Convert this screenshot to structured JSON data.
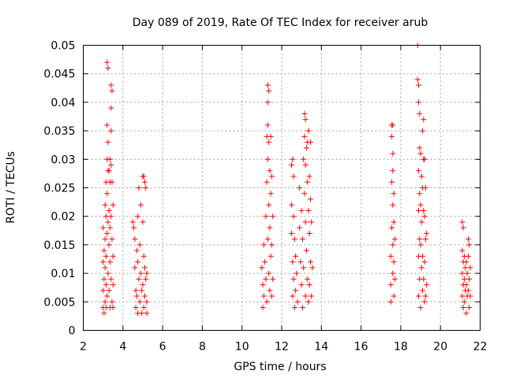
{
  "chart_data": {
    "type": "scatter",
    "title": "Day 089 of 2019, Rate Of TEC Index for receiver arub",
    "xlabel": "GPS time / hours",
    "ylabel": "ROTI / TECUs",
    "xlim": [
      2,
      22
    ],
    "ylim": [
      0,
      0.05
    ],
    "xticks": [
      2,
      4,
      6,
      8,
      10,
      12,
      14,
      16,
      18,
      20,
      22
    ],
    "xtick_labels": [
      "2",
      "4",
      "6",
      "8",
      "10",
      "12",
      "14",
      "16",
      "18",
      "20",
      "22"
    ],
    "yticks": [
      0,
      0.005,
      0.01,
      0.015,
      0.02,
      0.025,
      0.03,
      0.035,
      0.04,
      0.045,
      0.05
    ],
    "ytick_labels": [
      "0",
      "0.005",
      "0.01",
      "0.015",
      "0.02",
      "0.025",
      "0.03",
      "0.035",
      "0.04",
      "0.045",
      "0.05"
    ],
    "grid": true,
    "marker": "+",
    "marker_color": "#ff0000",
    "series": [
      {
        "name": "ROTI",
        "points": [
          [
            3.0,
            0.004
          ],
          [
            3.0,
            0.007
          ],
          [
            3.0,
            0.012
          ],
          [
            3.0,
            0.018
          ],
          [
            3.05,
            0.003
          ],
          [
            3.05,
            0.009
          ],
          [
            3.05,
            0.014
          ],
          [
            3.1,
            0.005
          ],
          [
            3.1,
            0.011
          ],
          [
            3.1,
            0.016
          ],
          [
            3.1,
            0.022
          ],
          [
            3.15,
            0.004
          ],
          [
            3.15,
            0.008
          ],
          [
            3.15,
            0.013
          ],
          [
            3.15,
            0.02
          ],
          [
            3.15,
            0.026
          ],
          [
            3.2,
            0.047
          ],
          [
            3.2,
            0.036
          ],
          [
            3.2,
            0.03
          ],
          [
            3.2,
            0.024
          ],
          [
            3.2,
            0.017
          ],
          [
            3.2,
            0.006
          ],
          [
            3.25,
            0.046
          ],
          [
            3.25,
            0.033
          ],
          [
            3.25,
            0.028
          ],
          [
            3.25,
            0.019
          ],
          [
            3.25,
            0.01
          ],
          [
            3.3,
            0.028
          ],
          [
            3.3,
            0.021
          ],
          [
            3.3,
            0.015
          ],
          [
            3.3,
            0.007
          ],
          [
            3.35,
            0.03
          ],
          [
            3.35,
            0.026
          ],
          [
            3.35,
            0.018
          ],
          [
            3.35,
            0.012
          ],
          [
            3.35,
            0.004
          ],
          [
            3.4,
            0.043
          ],
          [
            3.4,
            0.039
          ],
          [
            3.4,
            0.035
          ],
          [
            3.4,
            0.029
          ],
          [
            3.4,
            0.02
          ],
          [
            3.4,
            0.009
          ],
          [
            3.45,
            0.042
          ],
          [
            3.45,
            0.026
          ],
          [
            3.45,
            0.016
          ],
          [
            3.45,
            0.005
          ],
          [
            3.5,
            0.022
          ],
          [
            3.5,
            0.013
          ],
          [
            3.5,
            0.008
          ],
          [
            3.5,
            0.004
          ],
          [
            4.5,
            0.019
          ],
          [
            4.55,
            0.018
          ],
          [
            4.6,
            0.016
          ],
          [
            4.6,
            0.011
          ],
          [
            4.65,
            0.007
          ],
          [
            4.65,
            0.004
          ],
          [
            4.7,
            0.014
          ],
          [
            4.7,
            0.006
          ],
          [
            4.75,
            0.02
          ],
          [
            4.75,
            0.012
          ],
          [
            4.75,
            0.003
          ],
          [
            4.8,
            0.025
          ],
          [
            4.8,
            0.009
          ],
          [
            4.85,
            0.015
          ],
          [
            4.85,
            0.005
          ],
          [
            4.9,
            0.022
          ],
          [
            4.9,
            0.01
          ],
          [
            4.95,
            0.007
          ],
          [
            4.95,
            0.003
          ],
          [
            5.0,
            0.027
          ],
          [
            5.0,
            0.019
          ],
          [
            5.0,
            0.008
          ],
          [
            5.05,
            0.027
          ],
          [
            5.05,
            0.013
          ],
          [
            5.05,
            0.004
          ],
          [
            5.1,
            0.026
          ],
          [
            5.1,
            0.011
          ],
          [
            5.1,
            0.006
          ],
          [
            5.15,
            0.025
          ],
          [
            5.15,
            0.009
          ],
          [
            5.2,
            0.01
          ],
          [
            5.2,
            0.005
          ],
          [
            5.2,
            0.003
          ],
          [
            11.0,
            0.011
          ],
          [
            11.05,
            0.008
          ],
          [
            11.05,
            0.004
          ],
          [
            11.1,
            0.015
          ],
          [
            11.1,
            0.006
          ],
          [
            11.15,
            0.012
          ],
          [
            11.2,
            0.02
          ],
          [
            11.2,
            0.009
          ],
          [
            11.25,
            0.034
          ],
          [
            11.25,
            0.026
          ],
          [
            11.25,
            0.005
          ],
          [
            11.3,
            0.043
          ],
          [
            11.3,
            0.04
          ],
          [
            11.3,
            0.036
          ],
          [
            11.3,
            0.03
          ],
          [
            11.3,
            0.016
          ],
          [
            11.35,
            0.042
          ],
          [
            11.35,
            0.033
          ],
          [
            11.35,
            0.022
          ],
          [
            11.35,
            0.01
          ],
          [
            11.4,
            0.028
          ],
          [
            11.4,
            0.018
          ],
          [
            11.4,
            0.007
          ],
          [
            11.45,
            0.034
          ],
          [
            11.45,
            0.024
          ],
          [
            11.45,
            0.013
          ],
          [
            11.5,
            0.027
          ],
          [
            11.5,
            0.015
          ],
          [
            11.5,
            0.006
          ],
          [
            11.55,
            0.02
          ],
          [
            11.55,
            0.009
          ],
          [
            12.5,
            0.029
          ],
          [
            12.5,
            0.022
          ],
          [
            12.5,
            0.017
          ],
          [
            12.55,
            0.03
          ],
          [
            12.55,
            0.012
          ],
          [
            12.55,
            0.006
          ],
          [
            12.6,
            0.027
          ],
          [
            12.6,
            0.02
          ],
          [
            12.6,
            0.009
          ],
          [
            12.65,
            0.016
          ],
          [
            12.65,
            0.004
          ],
          [
            12.7,
            0.013
          ],
          [
            12.7,
            0.007
          ],
          [
            12.75,
            0.01
          ],
          [
            12.8,
            0.005
          ],
          [
            12.9,
            0.025
          ],
          [
            12.9,
            0.018
          ],
          [
            12.95,
            0.012
          ],
          [
            13.0,
            0.021
          ],
          [
            13.0,
            0.008
          ],
          [
            13.05,
            0.016
          ],
          [
            13.05,
            0.004
          ],
          [
            13.1,
            0.03
          ],
          [
            13.1,
            0.011
          ],
          [
            13.15,
            0.038
          ],
          [
            13.15,
            0.034
          ],
          [
            13.15,
            0.024
          ],
          [
            13.2,
            0.037
          ],
          [
            13.2,
            0.029
          ],
          [
            13.2,
            0.019
          ],
          [
            13.2,
            0.006
          ],
          [
            13.25,
            0.032
          ],
          [
            13.25,
            0.014
          ],
          [
            13.3,
            0.033
          ],
          [
            13.3,
            0.026
          ],
          [
            13.3,
            0.009
          ],
          [
            13.35,
            0.035
          ],
          [
            13.35,
            0.021
          ],
          [
            13.35,
            0.005
          ],
          [
            13.4,
            0.027
          ],
          [
            13.4,
            0.017
          ],
          [
            13.4,
            0.008
          ],
          [
            13.45,
            0.033
          ],
          [
            13.45,
            0.023
          ],
          [
            13.45,
            0.012
          ],
          [
            13.5,
            0.019
          ],
          [
            13.5,
            0.006
          ],
          [
            13.55,
            0.011
          ],
          [
            17.5,
            0.008
          ],
          [
            17.5,
            0.005
          ],
          [
            17.5,
            0.013
          ],
          [
            17.55,
            0.036
          ],
          [
            17.55,
            0.034
          ],
          [
            17.55,
            0.026
          ],
          [
            17.55,
            0.018
          ],
          [
            17.6,
            0.036
          ],
          [
            17.6,
            0.031
          ],
          [
            17.6,
            0.028
          ],
          [
            17.6,
            0.022
          ],
          [
            17.6,
            0.015
          ],
          [
            17.6,
            0.01
          ],
          [
            17.65,
            0.024
          ],
          [
            17.65,
            0.019
          ],
          [
            17.65,
            0.012
          ],
          [
            17.65,
            0.006
          ],
          [
            17.7,
            0.016
          ],
          [
            17.7,
            0.009
          ],
          [
            18.85,
            0.05
          ],
          [
            18.85,
            0.044
          ],
          [
            18.9,
            0.043
          ],
          [
            18.9,
            0.04
          ],
          [
            18.9,
            0.028
          ],
          [
            18.9,
            0.021
          ],
          [
            18.9,
            0.013
          ],
          [
            18.9,
            0.006
          ],
          [
            18.95,
            0.038
          ],
          [
            18.95,
            0.032
          ],
          [
            18.95,
            0.024
          ],
          [
            18.95,
            0.016
          ],
          [
            18.95,
            0.009
          ],
          [
            19.0,
            0.031
          ],
          [
            19.0,
            0.022
          ],
          [
            19.0,
            0.015
          ],
          [
            19.0,
            0.004
          ],
          [
            19.05,
            0.027
          ],
          [
            19.05,
            0.019
          ],
          [
            19.05,
            0.011
          ],
          [
            19.1,
            0.035
          ],
          [
            19.1,
            0.025
          ],
          [
            19.1,
            0.013
          ],
          [
            19.1,
            0.007
          ],
          [
            19.15,
            0.037
          ],
          [
            19.15,
            0.03
          ],
          [
            19.15,
            0.021
          ],
          [
            19.15,
            0.009
          ],
          [
            19.2,
            0.03
          ],
          [
            19.2,
            0.02
          ],
          [
            19.2,
            0.012
          ],
          [
            19.2,
            0.005
          ],
          [
            19.25,
            0.025
          ],
          [
            19.25,
            0.016
          ],
          [
            19.25,
            0.006
          ],
          [
            19.3,
            0.017
          ],
          [
            19.3,
            0.008
          ],
          [
            21.1,
            0.019
          ],
          [
            21.1,
            0.014
          ],
          [
            21.1,
            0.01
          ],
          [
            21.1,
            0.006
          ],
          [
            21.15,
            0.018
          ],
          [
            21.15,
            0.012
          ],
          [
            21.15,
            0.008
          ],
          [
            21.15,
            0.004
          ],
          [
            21.2,
            0.013
          ],
          [
            21.2,
            0.009
          ],
          [
            21.2,
            0.005
          ],
          [
            21.25,
            0.011
          ],
          [
            21.25,
            0.007
          ],
          [
            21.3,
            0.012
          ],
          [
            21.3,
            0.008
          ],
          [
            21.3,
            0.003
          ],
          [
            21.35,
            0.01
          ],
          [
            21.35,
            0.006
          ],
          [
            21.4,
            0.016
          ],
          [
            21.4,
            0.013
          ],
          [
            21.4,
            0.007
          ],
          [
            21.45,
            0.015
          ],
          [
            21.45,
            0.009
          ],
          [
            21.45,
            0.004
          ],
          [
            21.5,
            0.011
          ],
          [
            21.5,
            0.006
          ]
        ]
      }
    ]
  }
}
